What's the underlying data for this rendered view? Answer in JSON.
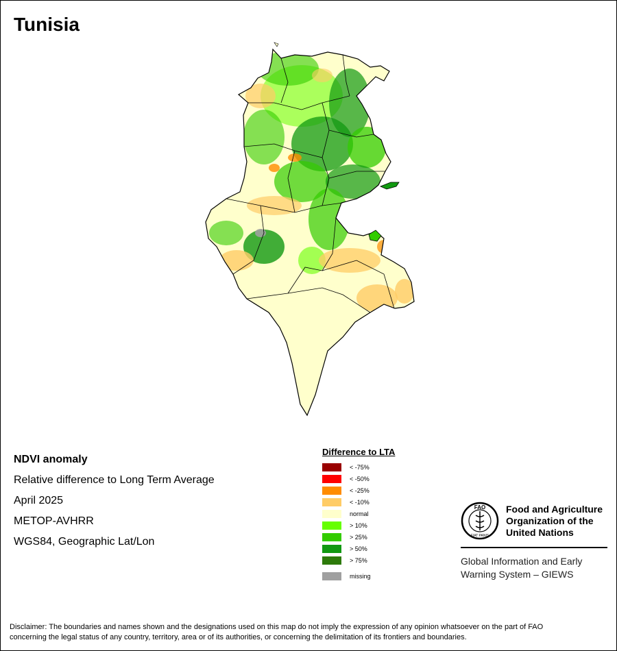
{
  "title": "Tunisia",
  "metadata": {
    "heading": "NDVI anomaly",
    "description": "Relative difference to Long Term Average",
    "date": "April 2025",
    "sensor": "METOP-AVHRR",
    "projection": "WGS84, Geographic Lat/Lon"
  },
  "legend": {
    "title": "Difference to LTA",
    "items": [
      {
        "label": "< -75%",
        "color": "#990000"
      },
      {
        "label": "< -50%",
        "color": "#ff0000"
      },
      {
        "label": "< -25%",
        "color": "#ff8c00"
      },
      {
        "label": "< -10%",
        "color": "#ffcc66"
      },
      {
        "label": "normal",
        "color": "#ffffcc"
      },
      {
        "label": "> 10%",
        "color": "#66ff00"
      },
      {
        "label": "> 25%",
        "color": "#33cc00"
      },
      {
        "label": "> 50%",
        "color": "#119911"
      },
      {
        "label": "> 75%",
        "color": "#2d7a0a"
      }
    ],
    "missing": {
      "label": "missing",
      "color": "#a0a0a0"
    }
  },
  "fao": {
    "name_line1": "Food and Agriculture",
    "name_line2": "Organization of the",
    "name_line3": "United Nations",
    "logo_text": "FAO",
    "logo_motto": "FIAT PANIS",
    "sub_line1": "Global Information and Early",
    "sub_line2": "Warning System – GIEWS"
  },
  "disclaimer": {
    "line1": "Disclaimer: The boundaries and names shown and the designations used on this map do not imply the expression of any opinion whatsoever on the part of FAO",
    "line2": "concerning the legal status of any country, territory, area or of its authorities, or concerning the delimitation of its frontiers and boundaries."
  }
}
